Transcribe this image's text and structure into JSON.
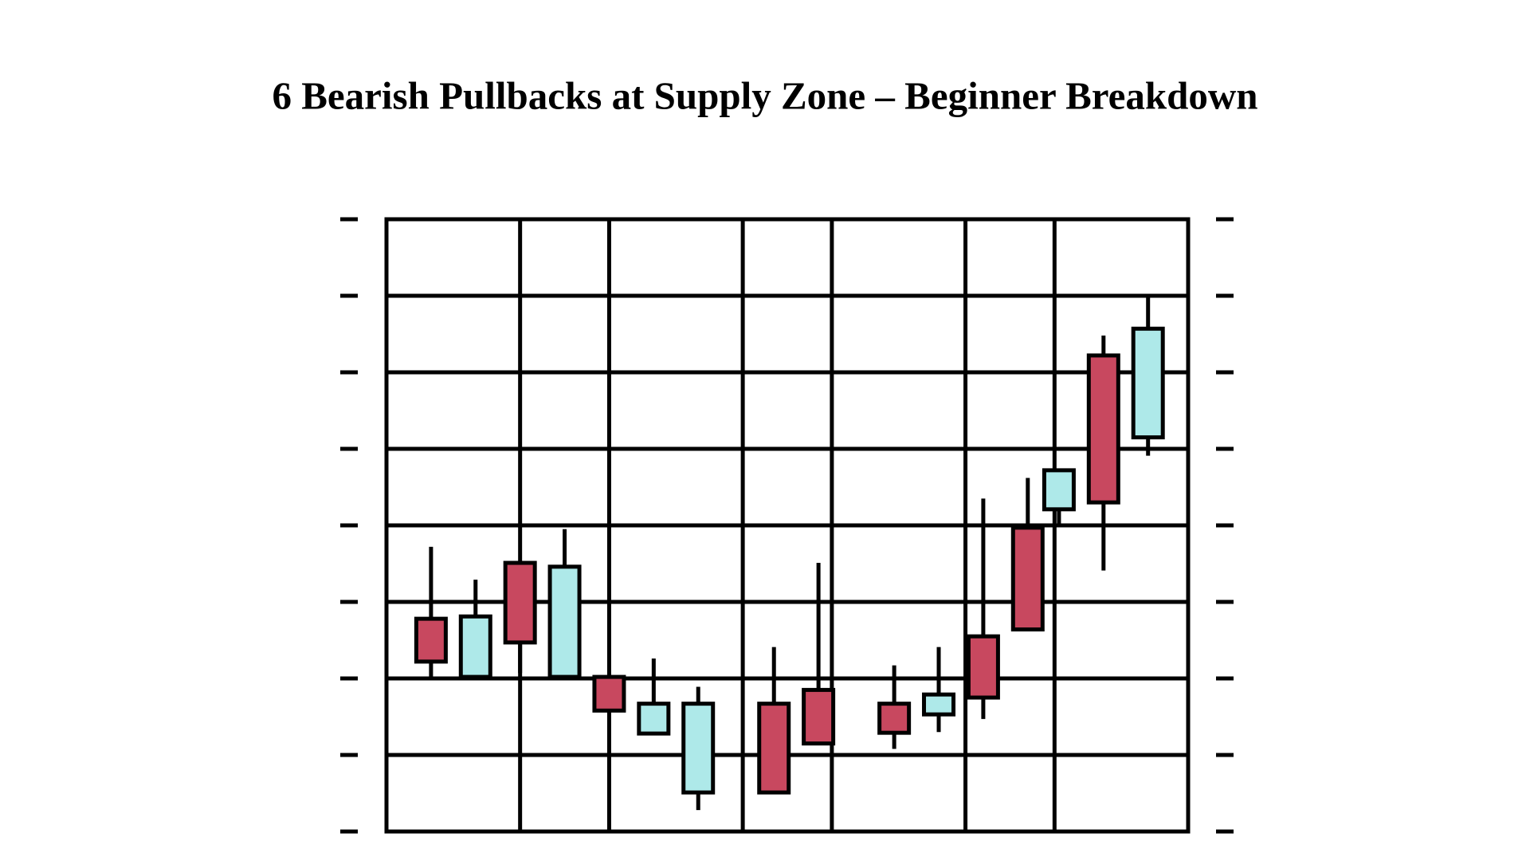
{
  "chart_data": {
    "type": "candlestick",
    "title": "6 Bearish Pullbacks at Supply Zone – Beginner Breakdown",
    "x": [
      0,
      1,
      2,
      3,
      4,
      5,
      6,
      7.7,
      8.7,
      10.4,
      11.4,
      12.4,
      13.4,
      14.1,
      15.1,
      16.1
    ],
    "open": [
      2.78,
      2.02,
      3.51,
      2.02,
      2.02,
      1.28,
      0.51,
      1.67,
      1.85,
      1.67,
      1.53,
      2.55,
      3.97,
      4.21,
      6.22,
      5.15
    ],
    "high": [
      3.72,
      3.29,
      3.51,
      3.95,
      2.02,
      2.26,
      1.89,
      2.41,
      3.51,
      2.17,
      2.41,
      4.35,
      4.62,
      4.72,
      6.48,
      6.98
    ],
    "low": [
      2.02,
      2.02,
      2.07,
      2.02,
      1.58,
      1.28,
      0.28,
      0.51,
      1.15,
      1.08,
      1.3,
      1.47,
      2.64,
      3.98,
      3.41,
      4.91
    ],
    "close": [
      2.22,
      2.81,
      2.47,
      3.46,
      1.58,
      1.67,
      1.67,
      0.51,
      1.15,
      1.29,
      1.79,
      1.75,
      2.64,
      4.72,
      4.3,
      6.57
    ],
    "up_color": "#aee9e9",
    "down_color": "#c8485f",
    "xlim": [
      -1,
      17
    ],
    "xticks": [
      2,
      4,
      7,
      9,
      12,
      14
    ],
    "ylim": [
      0,
      8
    ],
    "yticks": [
      0,
      1,
      2,
      3,
      4,
      5,
      6,
      7,
      8
    ],
    "grid": true
  }
}
